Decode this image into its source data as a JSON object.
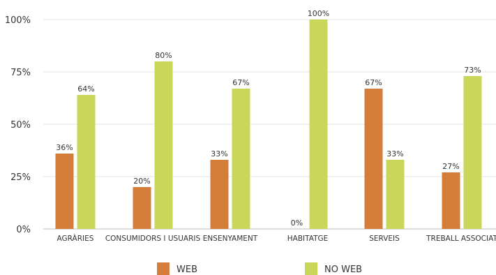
{
  "chart_data": {
    "type": "bar",
    "categories": [
      "AGRÀRIES",
      "CONSUMIDORS I USUARIS",
      "ENSENYAMENT",
      "HABITATGE",
      "SERVEIS",
      "TREBALL ASSOCIAT"
    ],
    "series": [
      {
        "name": "WEB",
        "color": "#d47c3a",
        "values": [
          36,
          20,
          33,
          0,
          67,
          27
        ],
        "labels": [
          "36%",
          "20%",
          "33%",
          "0%",
          "67%",
          "27%"
        ]
      },
      {
        "name": "NO WEB",
        "color": "#cad65a",
        "values": [
          64,
          80,
          67,
          100,
          33,
          73
        ],
        "labels": [
          "64%",
          "80%",
          "67%",
          "100%",
          "33%",
          "73%"
        ]
      }
    ],
    "yticks": [
      "0%",
      "25%",
      "50%",
      "75%",
      "100%"
    ],
    "ylim": [
      0,
      100
    ],
    "grid": true,
    "legend": "bottom"
  }
}
